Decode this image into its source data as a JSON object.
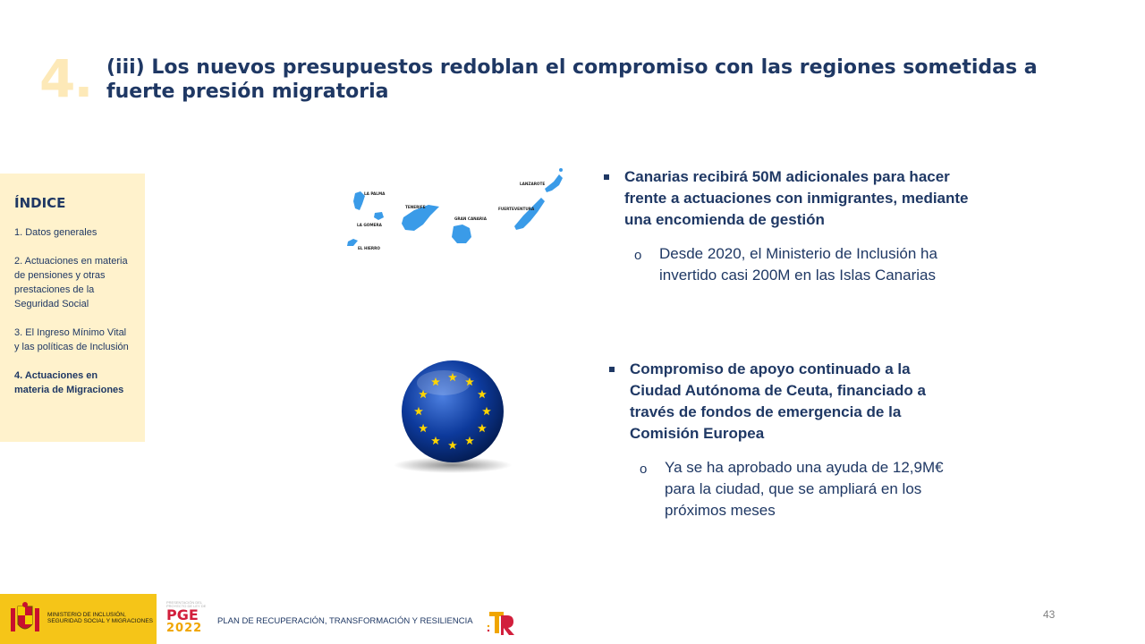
{
  "header": {
    "section_number": "4.",
    "title": "(iii) Los nuevos presupuestos redoblan el compromiso con las regiones sometidas a fuerte presión migratoria"
  },
  "index": {
    "heading": "ÍNDICE",
    "items": [
      {
        "label": "1. Datos generales",
        "active": false
      },
      {
        "label": "2. Actuaciones en materia de pensiones y otras prestaciones de la Seguridad Social",
        "active": false
      },
      {
        "label": "3. El Ingreso Mínimo Vital y las políticas de Inclusión",
        "active": false
      },
      {
        "label": "4. Actuaciones en materia de Migraciones",
        "active": true
      }
    ]
  },
  "map": {
    "islands": [
      "LA PALMA",
      "LA GOMERA",
      "EL HIERRO",
      "TENERIFE",
      "GRAN CANARIA",
      "FUERTEVENTURA",
      "LANZAROTE"
    ]
  },
  "bullets": [
    {
      "main": "Canarias recibirá 50M adicionales para hacer frente a actuaciones con inmigrantes, mediante una encomienda de gestión",
      "sub": "Desde 2020, el Ministerio de Inclusión ha invertido casi 200M en las Islas Canarias"
    },
    {
      "main": "Compromiso de apoyo continuado a la Ciudad Autónoma de Ceuta, financiado a través de fondos de emergencia de la Comisión Europea",
      "sub": "Ya se ha aprobado una ayuda de 12,9M€ para la ciudad, que se ampliará en los próximos meses"
    }
  ],
  "footer": {
    "ministry": "MINISTERIO DE INCLUSIÓN, SEGURIDAD SOCIAL Y MIGRACIONES",
    "pge_small": "PRESENTACIÓN DEL PROYECTO DE LEY DE",
    "pge_main": "PGE",
    "pge_year": "2022",
    "plan": "PLAN DE RECUPERACIÓN, TRANSFORMACIÓN Y RESILIENCIA",
    "page_number": "43"
  },
  "colors": {
    "title": "#1f3864",
    "index_bg": "#fff2cc",
    "section_number": "#fde9b8",
    "island": "#3a9be8",
    "footer_logo_bg": "#f5c518",
    "eu_blue": "#0d3a9c",
    "eu_star": "#ffd500"
  }
}
